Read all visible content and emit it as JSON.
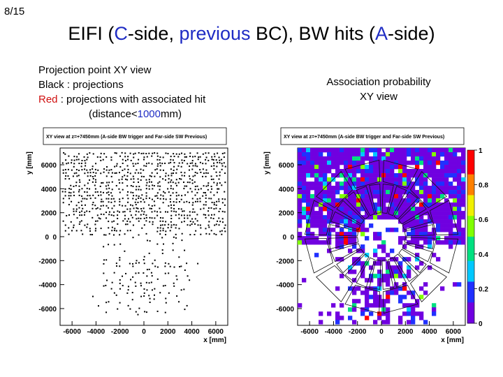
{
  "page_number": "8/15",
  "slide_title": {
    "part1": "EIFI (",
    "part2": "C",
    "part3": "-side, ",
    "part4": "previous",
    "part5": " BC), BW hits (",
    "part6": "A",
    "part7": "-side)"
  },
  "left_description": {
    "line1": "Projection point XY view",
    "line2": "Black : projections",
    "line3_red": "Red",
    "line3_rest": " : projections with associated hit",
    "line4_a": "(distance<",
    "line4_b": "1000",
    "line4_c": "mm)"
  },
  "right_description": {
    "line1": "Association probability",
    "line2": "XY view"
  },
  "colors": {
    "blue_text": "#1f2cc4",
    "red_text": "#d01010",
    "prob_background": "#6a1ce0"
  },
  "chart_data": [
    {
      "type": "scatter",
      "title": "XY view at z=+7450mm (A-side BW trigger and Far-side SW Previous)",
      "xlabel": "x [mm]",
      "ylabel": "y [mm]",
      "x_ticks": [
        "-6000",
        "-4000",
        "-2000",
        "0",
        "2000",
        "4000",
        "6000"
      ],
      "y_ticks": [
        "6000",
        "4000",
        "2000",
        "0",
        "-2000",
        "-4000",
        "-6000"
      ],
      "xlim": [
        -7000,
        7000
      ],
      "ylim": [
        -7400,
        7400
      ],
      "series": [
        {
          "name": "projections",
          "color": "#000000"
        },
        {
          "name": "projections with associated hit",
          "color": "#d01010"
        }
      ]
    },
    {
      "type": "heatmap",
      "title": "XY view at z=+7450mm (A-side BW trigger and Far-side SW Previous)",
      "xlabel": "x [mm]",
      "ylabel": "y [mm]",
      "x_ticks": [
        "-6000",
        "-4000",
        "-2000",
        "0",
        "2000",
        "4000",
        "6000"
      ],
      "y_ticks": [
        "6000",
        "4000",
        "2000",
        "0",
        "-2000",
        "-4000",
        "-6000"
      ],
      "xlim": [
        -7000,
        7000
      ],
      "ylim": [
        -7400,
        7400
      ],
      "colorbar_ticks": [
        "1",
        "0.8",
        "0.6",
        "0.4",
        "0.2",
        "0"
      ],
      "zlim": [
        0,
        1
      ],
      "palette": [
        "#7000e0",
        "#2030ff",
        "#00c8ff",
        "#00e080",
        "#80ff00",
        "#f0f000",
        "#ff8000",
        "#ff0000"
      ]
    }
  ]
}
